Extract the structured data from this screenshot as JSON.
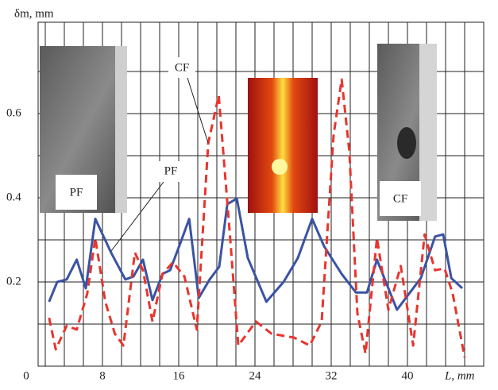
{
  "chart_data": {
    "type": "line",
    "y_label": "δm, mm",
    "x_label": "L, mm",
    "xlim": [
      0,
      48
    ],
    "ylim": [
      0,
      0.8
    ],
    "xticks": [
      0,
      8,
      16,
      24,
      32,
      40
    ],
    "yticks": [
      0.2,
      0.4,
      0.6
    ],
    "minor_xticks": [
      2,
      4,
      6,
      10,
      12,
      14,
      18,
      20,
      22,
      26,
      28,
      30,
      34,
      36,
      38,
      42,
      44,
      46
    ],
    "minor_yticks": [
      0.1,
      0.3,
      0.5,
      0.7
    ],
    "grid": true,
    "series": [
      {
        "name": "PF",
        "color": "#3a53a4",
        "dash": false,
        "x": [
          2.4,
          3.25,
          4.25,
          5.3,
          6.25,
          7.25,
          8.9,
          10.4,
          11.25,
          12.25,
          13.25,
          14.3,
          15.1,
          16.2,
          17.1,
          18.1,
          19.25,
          20.25,
          21.1,
          22.1,
          23.25,
          25.2,
          27,
          28.5,
          30,
          31.25,
          33.1,
          34.6,
          35.75,
          36.8,
          38.9,
          41.4,
          42.9,
          43.75,
          44.6,
          45.75
        ],
        "values": [
          0.153,
          0.2,
          0.206,
          0.253,
          0.185,
          0.35,
          0.27,
          0.206,
          0.213,
          0.253,
          0.157,
          0.219,
          0.228,
          0.294,
          0.35,
          0.162,
          0.206,
          0.236,
          0.385,
          0.398,
          0.257,
          0.153,
          0.2,
          0.257,
          0.35,
          0.285,
          0.219,
          0.175,
          0.175,
          0.253,
          0.134,
          0.209,
          0.308,
          0.313,
          0.209,
          0.185
        ]
      },
      {
        "name": "CF",
        "color": "#e8352e",
        "dash": true,
        "x": [
          2.4,
          3.1,
          4.25,
          5.3,
          6.4,
          7.25,
          8.3,
          9.3,
          10.2,
          11.4,
          12.25,
          13.25,
          14.3,
          15.4,
          16.6,
          17.9,
          19.1,
          20.2,
          21.4,
          22.25,
          24.1,
          25.75,
          28.1,
          29.75,
          31,
          32.25,
          33.1,
          33.9,
          34.75,
          35.6,
          36.8,
          38,
          39.3,
          40.6,
          41.8,
          42.9,
          43.9,
          44.75,
          46
        ],
        "values": [
          0.115,
          0.04,
          0.096,
          0.087,
          0.172,
          0.304,
          0.153,
          0.077,
          0.049,
          0.27,
          0.228,
          0.106,
          0.219,
          0.247,
          0.213,
          0.087,
          0.53,
          0.643,
          0.304,
          0.049,
          0.106,
          0.077,
          0.068,
          0.049,
          0.106,
          0.549,
          0.681,
          0.511,
          0.125,
          0.03,
          0.304,
          0.134,
          0.238,
          0.049,
          0.313,
          0.228,
          0.232,
          0.172,
          0.021
        ]
      }
    ],
    "annotations": [
      "CF",
      "PF"
    ],
    "inset_labels": [
      "PF",
      "CF"
    ]
  }
}
